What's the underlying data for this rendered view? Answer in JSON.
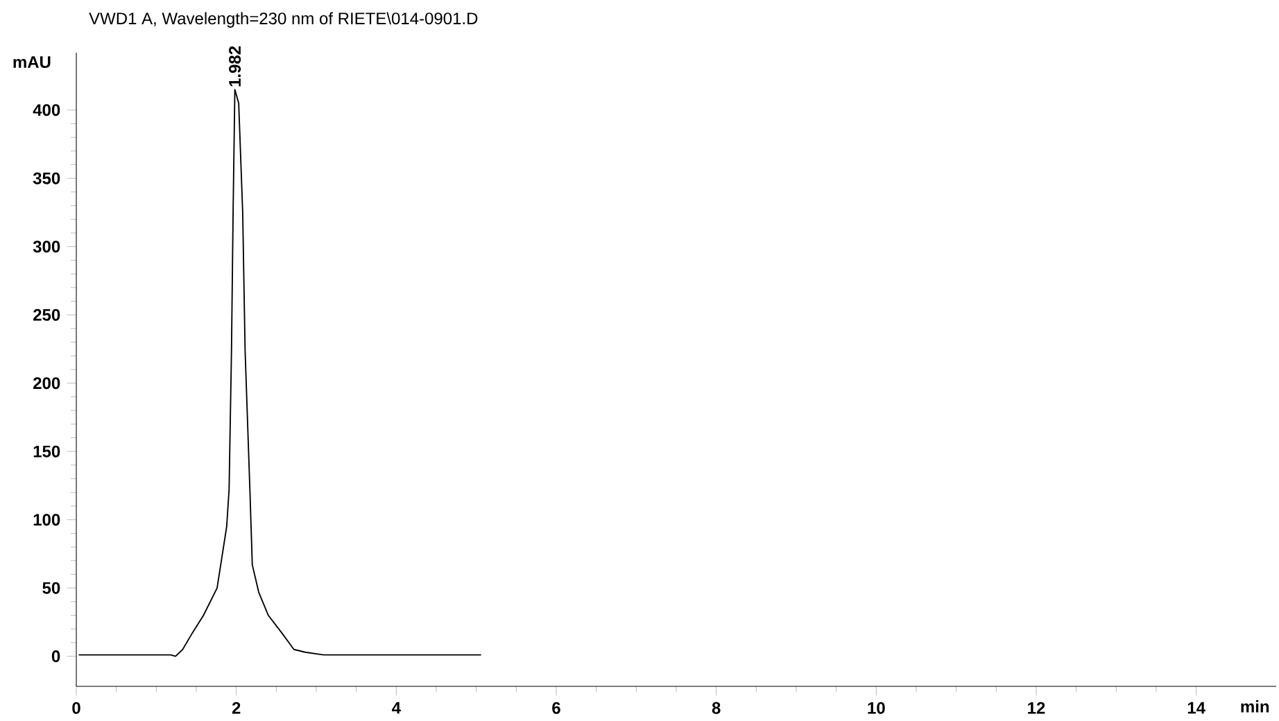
{
  "chart_data": {
    "type": "line",
    "title": "VWD1 A, Wavelength=230 nm of RIETE\\014-0901.D",
    "xlabel": "min",
    "ylabel": "mAU",
    "annotations": [
      {
        "text": "1.982",
        "x": 1.982,
        "y": 415
      }
    ],
    "x": [
      0.03,
      0.6,
      1.18,
      1.24,
      1.33,
      1.45,
      1.59,
      1.76,
      1.88,
      1.91,
      1.94,
      1.96,
      1.982,
      2.03,
      2.08,
      2.11,
      2.17,
      2.2,
      2.28,
      2.4,
      2.57,
      2.72,
      2.86,
      3.09,
      4.0,
      5.06
    ],
    "series": [
      {
        "color": "#000000",
        "values": [
          1,
          1,
          1,
          0,
          5,
          17,
          30,
          50,
          95,
          122,
          224,
          325,
          415,
          405,
          325,
          224,
          122,
          67,
          47,
          30,
          17,
          5,
          3,
          1,
          1,
          1
        ]
      }
    ],
    "xlim": [
      0,
      15
    ],
    "ylim": [
      -22,
      442
    ],
    "xticks": [
      0,
      2,
      4,
      6,
      8,
      10,
      12,
      14
    ],
    "yticks": [
      0,
      50,
      100,
      150,
      200,
      250,
      300,
      350,
      400
    ],
    "marker": "none",
    "line_style": "solid"
  }
}
